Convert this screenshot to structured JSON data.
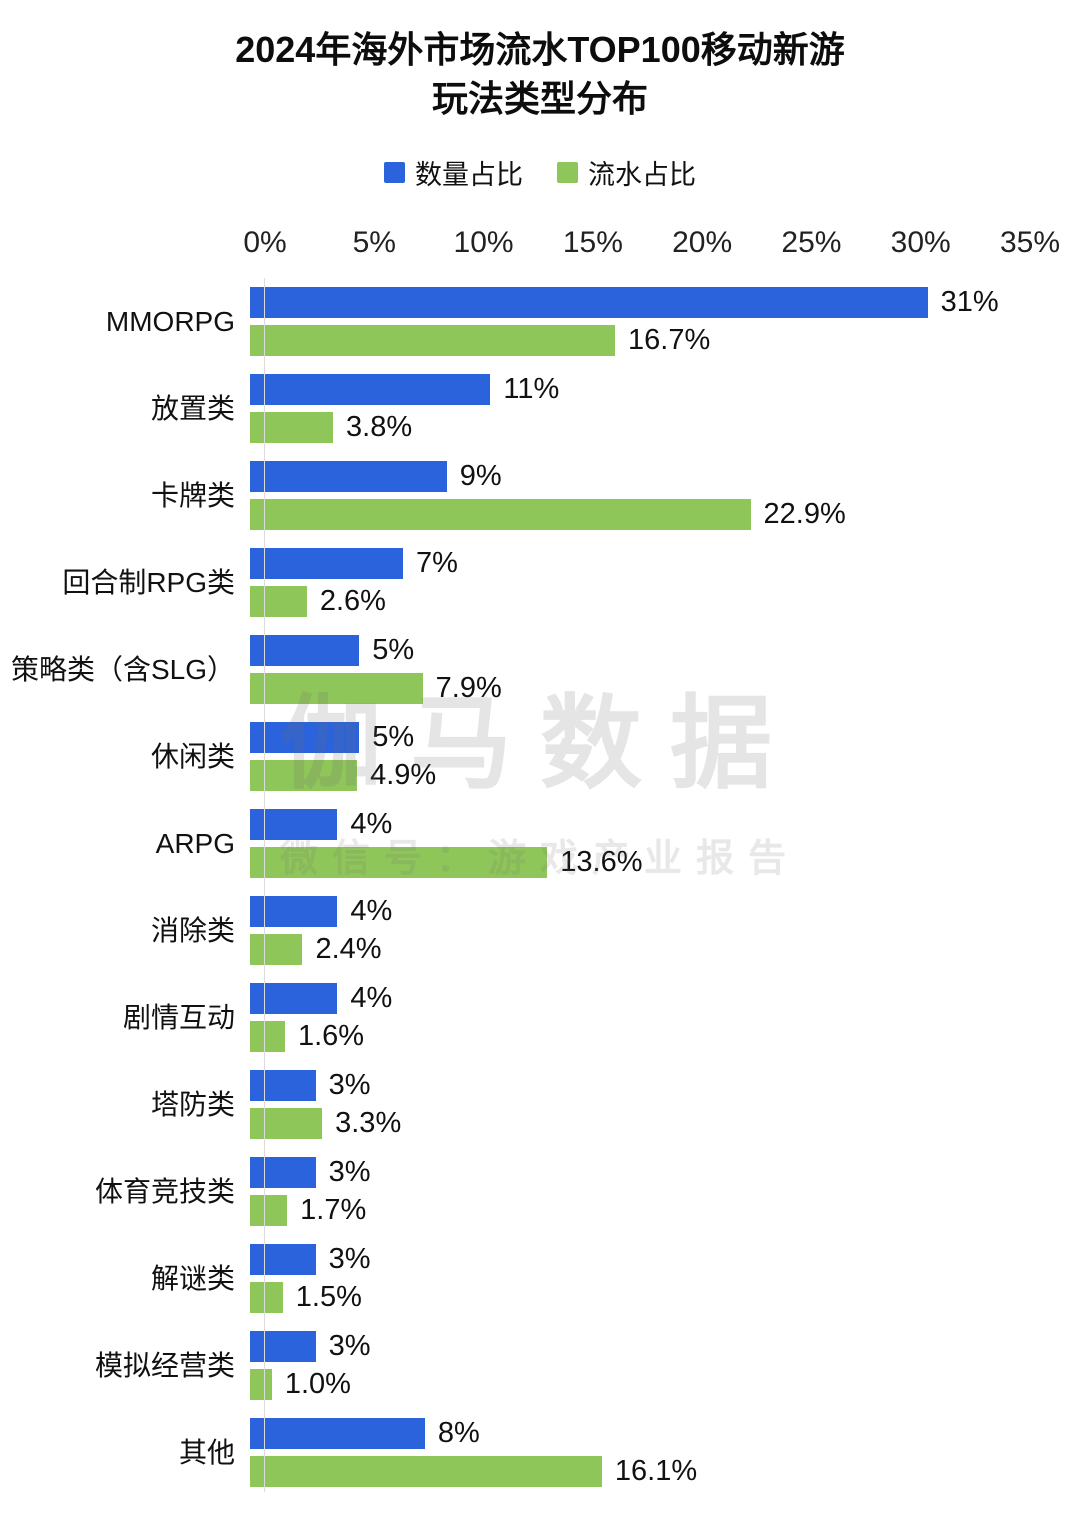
{
  "title_line1": "2024年海外市场流水TOP100移动新游",
  "title_line2": "玩法类型分布",
  "legend": [
    {
      "label": "数量占比",
      "color": "#2a63db"
    },
    {
      "label": "流水占比",
      "color": "#8fc65a"
    }
  ],
  "watermark": {
    "line1": "伽马数据",
    "line2": "微信号：游戏产业报告"
  },
  "chart_data": {
    "type": "bar",
    "orientation": "horizontal",
    "title": "2024年海外市场流水TOP100移动新游 玩法类型分布",
    "xlim": [
      0,
      35
    ],
    "x_ticks": [
      "0%",
      "5%",
      "10%",
      "15%",
      "20%",
      "25%",
      "30%",
      "35%"
    ],
    "grid": false,
    "legend_position": "top",
    "categories": [
      "MMORPG",
      "放置类",
      "卡牌类",
      "回合制RPG类",
      "策略类（含SLG）",
      "休闲类",
      "ARPG",
      "消除类",
      "剧情互动",
      "塔防类",
      "体育竞技类",
      "解谜类",
      "模拟经营类",
      "其他"
    ],
    "series": [
      {
        "name": "数量占比",
        "color": "#2a63db",
        "values": [
          31,
          11,
          9,
          7,
          5,
          5,
          4,
          4,
          4,
          3,
          3,
          3,
          3,
          8
        ],
        "labels": [
          "31%",
          "11%",
          "9%",
          "7%",
          "5%",
          "5%",
          "4%",
          "4%",
          "4%",
          "3%",
          "3%",
          "3%",
          "3%",
          "8%"
        ]
      },
      {
        "name": "流水占比",
        "color": "#8fc65a",
        "values": [
          16.7,
          3.8,
          22.9,
          2.6,
          7.9,
          4.9,
          13.6,
          2.4,
          1.6,
          3.3,
          1.7,
          1.5,
          1.0,
          16.1
        ],
        "labels": [
          "16.7%",
          "3.8%",
          "22.9%",
          "2.6%",
          "7.9%",
          "4.9%",
          "13.6%",
          "2.4%",
          "1.6%",
          "3.3%",
          "1.7%",
          "1.5%",
          "1.0%",
          "16.1%"
        ]
      }
    ]
  }
}
